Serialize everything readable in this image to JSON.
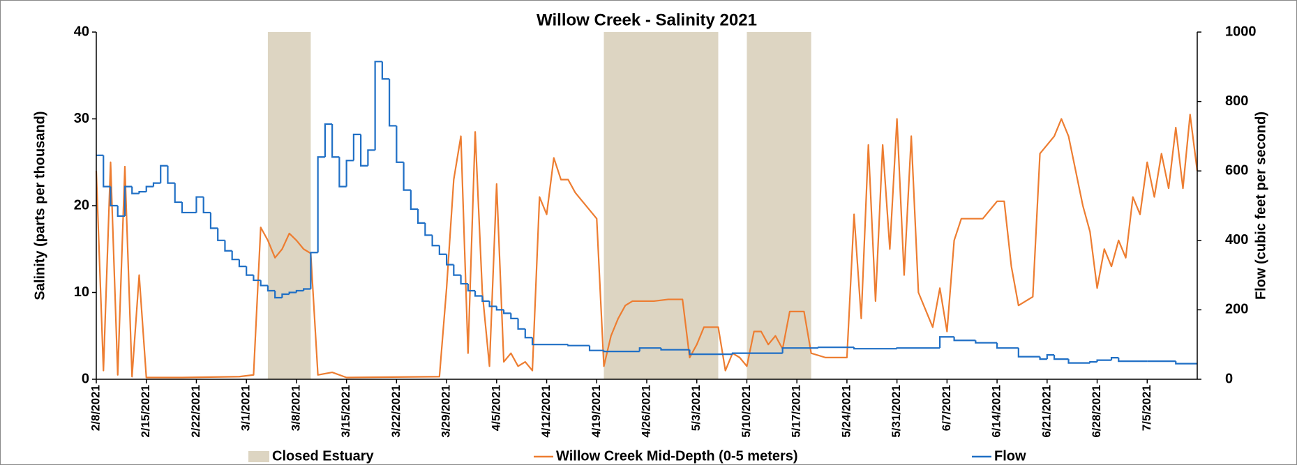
{
  "chart_data": {
    "type": "line",
    "title": "Willow Creek - Salinity 2021",
    "y_label": "Salinity (parts per thousand)",
    "y2_label": "Flow (cubic feet per second)",
    "xlim": [
      "2021-02-08",
      "2021-07-12"
    ],
    "xticks": [
      {
        "value": "2021-02-08",
        "label": "2/8/2021"
      },
      {
        "value": "2021-02-15",
        "label": "2/15/2021"
      },
      {
        "value": "2021-02-22",
        "label": "2/22/2021"
      },
      {
        "value": "2021-03-01",
        "label": "3/1/2021"
      },
      {
        "value": "2021-03-08",
        "label": "3/8/2021"
      },
      {
        "value": "2021-03-15",
        "label": "3/15/2021"
      },
      {
        "value": "2021-03-22",
        "label": "3/22/2021"
      },
      {
        "value": "2021-03-29",
        "label": "3/29/2021"
      },
      {
        "value": "2021-04-05",
        "label": "4/5/2021"
      },
      {
        "value": "2021-04-12",
        "label": "4/12/2021"
      },
      {
        "value": "2021-04-19",
        "label": "4/19/2021"
      },
      {
        "value": "2021-04-26",
        "label": "4/26/2021"
      },
      {
        "value": "2021-05-03",
        "label": "5/3/2021"
      },
      {
        "value": "2021-05-10",
        "label": "5/10/2021"
      },
      {
        "value": "2021-05-17",
        "label": "5/17/2021"
      },
      {
        "value": "2021-05-24",
        "label": "5/24/2021"
      },
      {
        "value": "2021-05-31",
        "label": "5/31/2021"
      },
      {
        "value": "2021-06-07",
        "label": "6/7/2021"
      },
      {
        "value": "2021-06-14",
        "label": "6/14/2021"
      },
      {
        "value": "2021-06-21",
        "label": "6/21/2021"
      },
      {
        "value": "2021-06-28",
        "label": "6/28/2021"
      },
      {
        "value": "2021-07-05",
        "label": "7/5/2021"
      }
    ],
    "ylim": [
      0,
      40
    ],
    "yticks": [
      0,
      10,
      20,
      30,
      40
    ],
    "y2lim": [
      0,
      1000
    ],
    "y2ticks": [
      0,
      200,
      400,
      600,
      800,
      1000
    ],
    "shaded_periods": {
      "name": "Closed Estuary",
      "color": "#ddd5c2",
      "ranges": [
        {
          "start": "2021-03-04",
          "end": "2021-03-10"
        },
        {
          "start": "2021-04-20",
          "end": "2021-05-06"
        },
        {
          "start": "2021-05-10",
          "end": "2021-05-19"
        }
      ]
    },
    "series": [
      {
        "name": "Willow Creek Mid-Depth (0-5 meters)",
        "color": "#ed7d31",
        "x": [
          "2021-02-08",
          "2021-02-09",
          "2021-02-10",
          "2021-02-11",
          "2021-02-12",
          "2021-02-13",
          "2021-02-14",
          "2021-02-15",
          "2021-02-20",
          "2021-02-28",
          "2021-03-02",
          "2021-03-03",
          "2021-03-04",
          "2021-03-05",
          "2021-03-06",
          "2021-03-07",
          "2021-03-08",
          "2021-03-09",
          "2021-03-10",
          "2021-03-11",
          "2021-03-13",
          "2021-03-15",
          "2021-03-28",
          "2021-03-29",
          "2021-03-30",
          "2021-03-31",
          "2021-04-01",
          "2021-04-02",
          "2021-04-03",
          "2021-04-04",
          "2021-04-05",
          "2021-04-06",
          "2021-04-07",
          "2021-04-08",
          "2021-04-09",
          "2021-04-10",
          "2021-04-11",
          "2021-04-12",
          "2021-04-13",
          "2021-04-14",
          "2021-04-15",
          "2021-04-16",
          "2021-04-17",
          "2021-04-18",
          "2021-04-19",
          "2021-04-20",
          "2021-04-21",
          "2021-04-22",
          "2021-04-23",
          "2021-04-24",
          "2021-04-25",
          "2021-04-27",
          "2021-04-29",
          "2021-05-01",
          "2021-05-02",
          "2021-05-03",
          "2021-05-04",
          "2021-05-06",
          "2021-05-07",
          "2021-05-08",
          "2021-05-09",
          "2021-05-10",
          "2021-05-11",
          "2021-05-12",
          "2021-05-13",
          "2021-05-14",
          "2021-05-15",
          "2021-05-16",
          "2021-05-18",
          "2021-05-19",
          "2021-05-21",
          "2021-05-24",
          "2021-05-25",
          "2021-05-26",
          "2021-05-27",
          "2021-05-28",
          "2021-05-29",
          "2021-05-30",
          "2021-05-31",
          "2021-06-01",
          "2021-06-02",
          "2021-06-03",
          "2021-06-04",
          "2021-06-05",
          "2021-06-06",
          "2021-06-07",
          "2021-06-08",
          "2021-06-09",
          "2021-06-12",
          "2021-06-14",
          "2021-06-15",
          "2021-06-16",
          "2021-06-17",
          "2021-06-19",
          "2021-06-20",
          "2021-06-22",
          "2021-06-23",
          "2021-06-24",
          "2021-06-25",
          "2021-06-26",
          "2021-06-27",
          "2021-06-28",
          "2021-06-29",
          "2021-06-30",
          "2021-07-01",
          "2021-07-02",
          "2021-07-03",
          "2021-07-04",
          "2021-07-05",
          "2021-07-06",
          "2021-07-07",
          "2021-07-08",
          "2021-07-09",
          "2021-07-10",
          "2021-07-11",
          "2021-07-12"
        ],
        "values": [
          24,
          1,
          25,
          0.5,
          24.5,
          0.3,
          12,
          0.2,
          0.2,
          0.3,
          0.5,
          17.5,
          16,
          14,
          15,
          16.8,
          16,
          15,
          14.5,
          0.5,
          0.8,
          0.2,
          0.3,
          10.5,
          23,
          28,
          3,
          28.5,
          10,
          1.5,
          22.5,
          2,
          3,
          1.5,
          2,
          1,
          21,
          19,
          25.5,
          23,
          23,
          21.5,
          20.5,
          19.5,
          18.5,
          1.5,
          5,
          7,
          8.5,
          9,
          9,
          9,
          9.2,
          9.2,
          2.5,
          4,
          6,
          6,
          1,
          3,
          2.5,
          1.5,
          5.5,
          5.5,
          4,
          5,
          3.5,
          7.8,
          7.8,
          3,
          2.5,
          2.5,
          19,
          7,
          27,
          9,
          27,
          15,
          30,
          12,
          28,
          10,
          8,
          6,
          10.5,
          5.5,
          16,
          18.5,
          18.5,
          20.5,
          20.5,
          13,
          8.5,
          9.5,
          26,
          28,
          30,
          28,
          24,
          20,
          17,
          10.5,
          15,
          13,
          16,
          14,
          21,
          19,
          25,
          21,
          26,
          22,
          29,
          22,
          30.5,
          24
        ]
      },
      {
        "name": "Flow",
        "color": "#1f6fc5",
        "axis": "y2",
        "step": true,
        "x": [
          "2021-02-08",
          "2021-02-09",
          "2021-02-10",
          "2021-02-11",
          "2021-02-12",
          "2021-02-13",
          "2021-02-14",
          "2021-02-15",
          "2021-02-16",
          "2021-02-17",
          "2021-02-18",
          "2021-02-19",
          "2021-02-20",
          "2021-02-22",
          "2021-02-23",
          "2021-02-24",
          "2021-02-25",
          "2021-02-26",
          "2021-02-27",
          "2021-02-28",
          "2021-03-01",
          "2021-03-02",
          "2021-03-03",
          "2021-03-04",
          "2021-03-05",
          "2021-03-06",
          "2021-03-07",
          "2021-03-08",
          "2021-03-09",
          "2021-03-10",
          "2021-03-11",
          "2021-03-12",
          "2021-03-13",
          "2021-03-14",
          "2021-03-15",
          "2021-03-16",
          "2021-03-17",
          "2021-03-18",
          "2021-03-19",
          "2021-03-20",
          "2021-03-21",
          "2021-03-22",
          "2021-03-23",
          "2021-03-24",
          "2021-03-25",
          "2021-03-26",
          "2021-03-27",
          "2021-03-28",
          "2021-03-29",
          "2021-03-30",
          "2021-03-31",
          "2021-04-01",
          "2021-04-02",
          "2021-04-03",
          "2021-04-04",
          "2021-04-05",
          "2021-04-06",
          "2021-04-07",
          "2021-04-08",
          "2021-04-09",
          "2021-04-10",
          "2021-04-15",
          "2021-04-18",
          "2021-04-20",
          "2021-04-25",
          "2021-04-28",
          "2021-05-02",
          "2021-05-08",
          "2021-05-15",
          "2021-05-20",
          "2021-05-25",
          "2021-05-31",
          "2021-06-06",
          "2021-06-08",
          "2021-06-11",
          "2021-06-14",
          "2021-06-17",
          "2021-06-20",
          "2021-06-21",
          "2021-06-22",
          "2021-06-24",
          "2021-06-27",
          "2021-06-28",
          "2021-06-30",
          "2021-07-01",
          "2021-07-05",
          "2021-07-09"
        ],
        "values": [
          645,
          555,
          500,
          470,
          555,
          535,
          540,
          555,
          565,
          615,
          565,
          510,
          480,
          525,
          480,
          435,
          400,
          370,
          345,
          325,
          300,
          285,
          270,
          255,
          235,
          245,
          250,
          255,
          260,
          365,
          640,
          735,
          640,
          555,
          630,
          705,
          615,
          660,
          915,
          865,
          730,
          625,
          545,
          490,
          450,
          415,
          385,
          360,
          330,
          300,
          275,
          255,
          240,
          225,
          210,
          200,
          190,
          175,
          145,
          120,
          100,
          97,
          83,
          80,
          90,
          85,
          72,
          75,
          90,
          92,
          88,
          90,
          122,
          112,
          105,
          90,
          65,
          58,
          70,
          58,
          47,
          50,
          55,
          62,
          52,
          52,
          45
        ]
      }
    ]
  }
}
